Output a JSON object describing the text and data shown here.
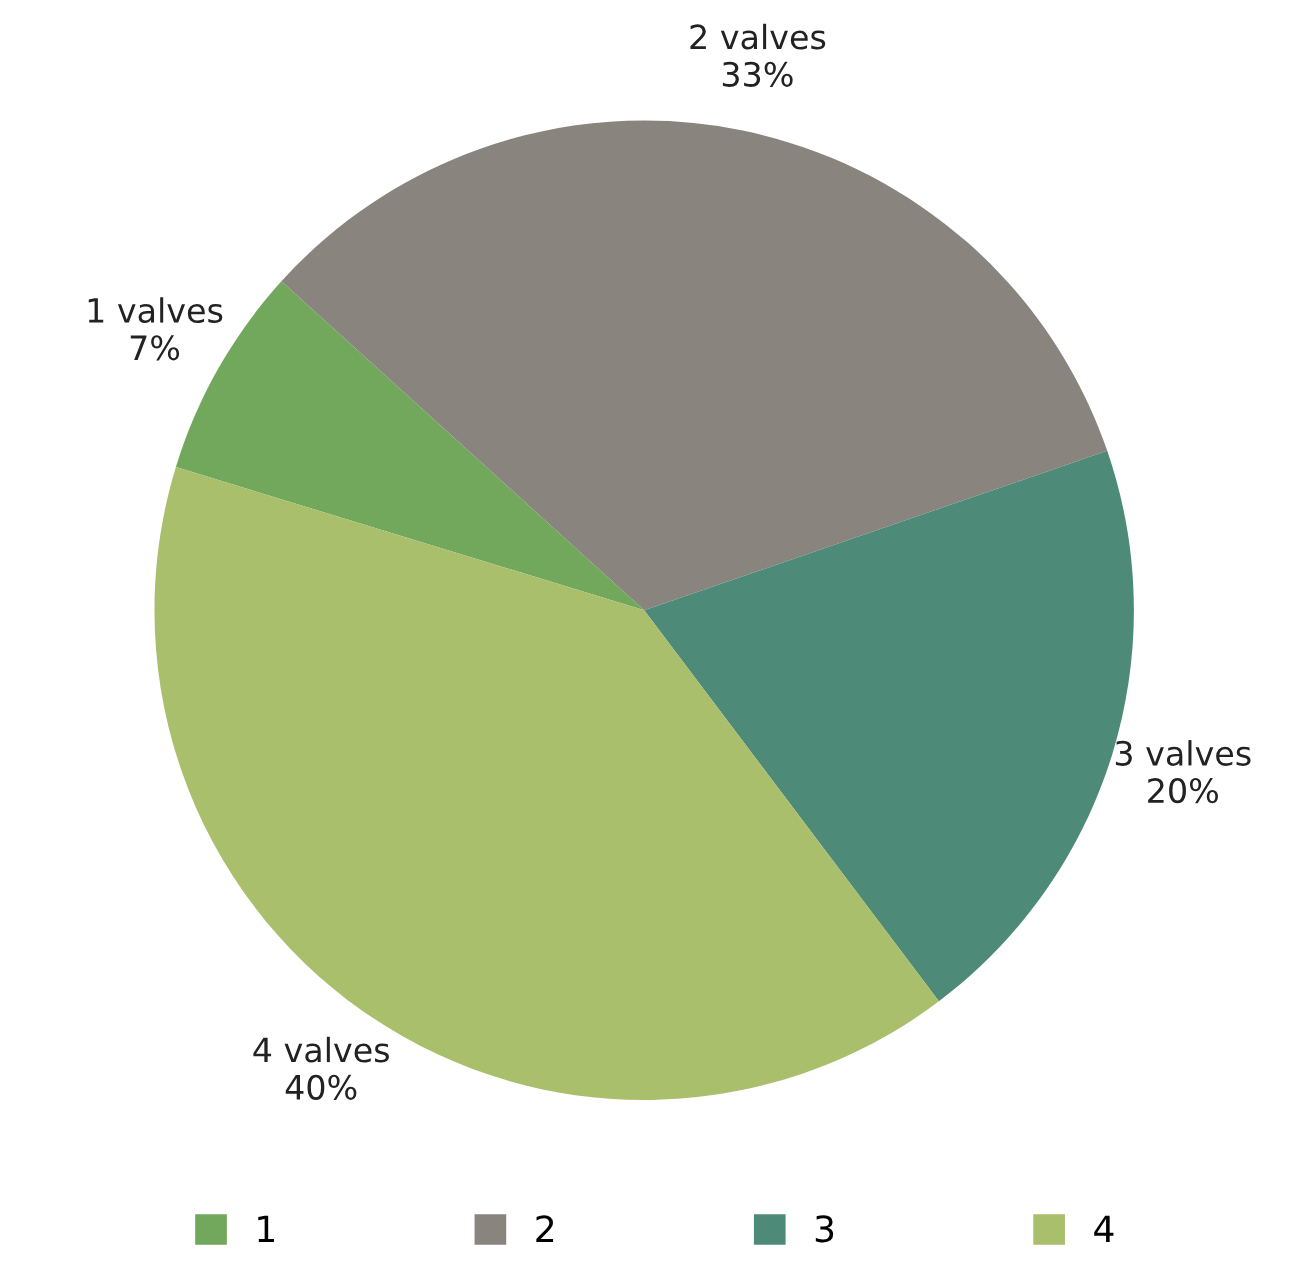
{
  "chart_data": {
    "type": "pie",
    "categories": [
      "1",
      "2",
      "3",
      "4"
    ],
    "values": [
      7,
      33,
      20,
      40
    ],
    "colors": [
      "#72a85c",
      "#8a847e",
      "#4e8a78",
      "#a9bf6c"
    ],
    "value_labels": [
      "1 valves\n7%",
      "2 valves\n33%",
      "3 valves\n20%",
      "4 valves\n40%"
    ],
    "legend": "bottom"
  }
}
